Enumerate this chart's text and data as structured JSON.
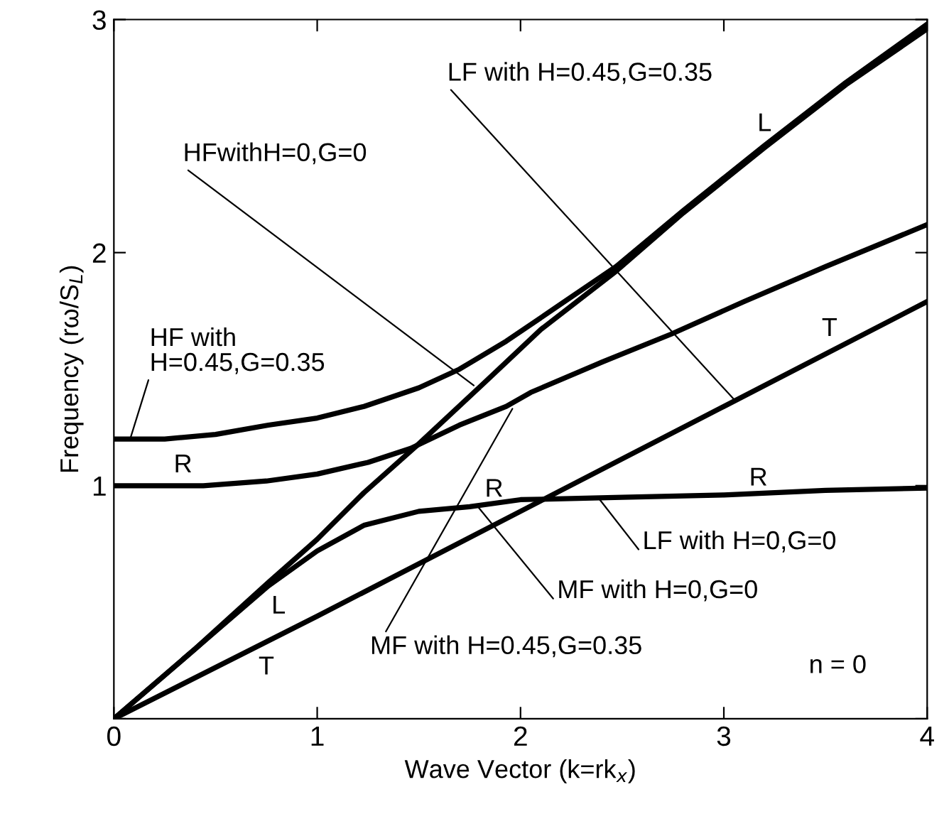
{
  "chart_data": {
    "type": "line",
    "xlabel": "Wave Vector (k=rk$_{x}$)",
    "ylabel": "Frequency (rω/S$_{L}$)",
    "xlim": [
      0,
      4
    ],
    "ylim": [
      0,
      3
    ],
    "xticks": [
      0,
      1,
      2,
      3,
      4
    ],
    "yticks": [
      {
        "value": 0,
        "label": null
      },
      1,
      2,
      3
    ],
    "grid": false,
    "legend": false,
    "marker": "none",
    "line_style": "solid",
    "series": [
      {
        "color": "#000000",
        "x": [
          0,
          0.25,
          0.5,
          0.76,
          1.0,
          1.23,
          1.5,
          1.7,
          1.93,
          2.2,
          2.47,
          2.8,
          3.2,
          3.6,
          4
        ],
        "values": [
          1.2,
          1.2,
          1.22,
          1.26,
          1.29,
          1.34,
          1.42,
          1.5,
          1.62,
          1.78,
          1.94,
          2.18,
          2.46,
          2.73,
          2.98
        ]
      },
      {
        "color": "#000000",
        "x": [
          0,
          0.4,
          0.76,
          1.0,
          1.23,
          1.5,
          1.82,
          2.1,
          2.47,
          2.8,
          3.2,
          3.6,
          4
        ],
        "values": [
          0,
          0.3,
          0.585,
          0.77,
          0.97,
          1.18,
          1.44,
          1.67,
          1.92,
          2.17,
          2.45,
          2.72,
          2.96
        ]
      },
      {
        "color": "#000000",
        "x": [
          0,
          0.44,
          0.75,
          1.0,
          1.25,
          1.46,
          1.7,
          1.93,
          2.05,
          2.4,
          2.74,
          3.1,
          3.5,
          4
        ],
        "values": [
          1.0,
          1.0,
          1.02,
          1.05,
          1.1,
          1.16,
          1.26,
          1.34,
          1.4,
          1.53,
          1.65,
          1.79,
          1.94,
          2.12
        ]
      },
      {
        "color": "#000000",
        "x": [
          0,
          0.4,
          0.76,
          1.0,
          1.23,
          1.5,
          1.75,
          2.0,
          2.5,
          3.0,
          3.5,
          4
        ],
        "values": [
          0,
          0.3,
          0.57,
          0.72,
          0.83,
          0.89,
          0.91,
          0.94,
          0.95,
          0.96,
          0.98,
          0.99
        ]
      },
      {
        "color": "#000000",
        "x": [
          0,
          1,
          2,
          3,
          4
        ],
        "values": [
          0,
          0.44,
          0.89,
          1.34,
          1.79
        ]
      }
    ],
    "annotations": [
      {
        "text": "LF with H=0.45,G=0.35",
        "x": 3.05,
        "y": 1.37
      },
      {
        "text": "HFwithH=0,G=0",
        "x": 1.77,
        "y": 1.43
      },
      {
        "text": "HF with\nH=0.45,G=0.35",
        "x": 0.08,
        "y": 1.2
      },
      {
        "text": "MF with H=0.45,G=0.35",
        "x": 1.96,
        "y": 1.33
      },
      {
        "text": "MF with H=0,G=0",
        "x": 1.79,
        "y": 0.91
      },
      {
        "text": "LF with H=0,G=0",
        "x": 2.39,
        "y": 0.94
      },
      "L",
      "T",
      "L",
      "T",
      "R",
      "R",
      "R",
      "n = 0"
    ]
  }
}
